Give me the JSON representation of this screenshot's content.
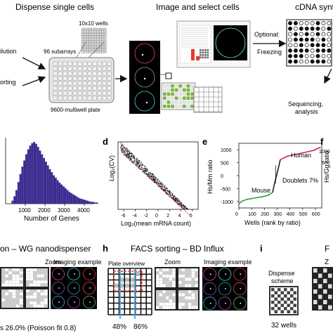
{
  "top": {
    "dispense_title": "Dispense single cells",
    "image_title": "Image and select cells",
    "cdna_title": "cDNA synth",
    "dilution": "ilution",
    "sorting": "orting",
    "wells_10x10": "10x10 wells",
    "subarrays": "96 subarrays",
    "plate": "9600-multiwell plate",
    "optional": "Optional:",
    "freezing": "Freezing",
    "sequencing": "Sequencing,",
    "analysis": "analysis"
  },
  "panels": {
    "d": "d",
    "e": "e",
    "f": "f",
    "h": "h",
    "i": "i"
  },
  "hist": {
    "xlabel": "Number of Genes",
    "ticks": [
      "1000",
      "2000",
      "3000",
      "4000"
    ],
    "chart_data": {
      "type": "bar",
      "xlabel": "Number of Genes",
      "ylabel": "",
      "xlim": [
        0,
        4500
      ],
      "bin_width": 100,
      "bin_start": 300,
      "values": [
        5,
        12,
        22,
        35,
        48,
        60,
        70,
        80,
        88,
        94,
        98,
        100,
        97,
        92,
        86,
        80,
        74,
        68,
        62,
        56,
        51,
        46,
        42,
        38,
        34,
        31,
        28,
        25,
        22,
        19,
        17,
        15,
        13,
        11,
        9,
        8,
        7,
        6,
        5,
        4,
        3,
        3,
        2,
        2
      ]
    }
  },
  "scatter_d": {
    "ylabel": "Log₂(CV)",
    "xlabel": "Log₂(mean mRNA count)",
    "xticks": [
      "-6",
      "-4",
      "-2",
      "0",
      "2",
      "4",
      "6"
    ],
    "yticks": [
      "2",
      "1",
      "0",
      "-1",
      "-2",
      "-3"
    ],
    "chart_data": {
      "type": "scatter",
      "xlabel": "Log₂(mean mRNA count)",
      "ylabel": "Log₂(CV)",
      "xlim": [
        -7,
        7
      ],
      "ylim": [
        -3.5,
        2.5
      ],
      "trend_color": "#d62728"
    }
  },
  "ratio_e": {
    "ylabel": "Hs/Mm ratio",
    "xlabel": "Wells (rank by ratio)",
    "yticks": [
      "1000",
      "500",
      "0",
      "-500",
      "-1000"
    ],
    "xticks": [
      "0",
      "100",
      "200",
      "300",
      "400",
      "500",
      "600"
    ],
    "mouse": "Mouse",
    "human": "Human",
    "doublets": "Doublets 7%",
    "chart_data": {
      "type": "line",
      "xlabel": "Wells (rank by ratio)",
      "ylabel": "Hs/Mm ratio",
      "xlim": [
        0,
        650
      ],
      "ylim": [
        -1250,
        1250
      ],
      "series": [
        {
          "name": "Mouse",
          "color": "#2ca02c",
          "x": [
            0,
            20,
            60,
            120,
            180,
            230,
            265
          ],
          "y": [
            -1100,
            -1000,
            -920,
            -870,
            -820,
            -760,
            -650
          ]
        },
        {
          "name": "",
          "color": "#222222",
          "x": [
            265,
            280,
            295,
            310,
            325
          ],
          "y": [
            -650,
            -300,
            0,
            300,
            620
          ]
        },
        {
          "name": "Human",
          "color": "#d81b60",
          "x": [
            325,
            380,
            450,
            520,
            590,
            640
          ],
          "y": [
            620,
            750,
            830,
            900,
            980,
            1100
          ]
        }
      ]
    }
  },
  "ratio_f": {
    "ylabel": "Hs/Gg ratio",
    "yticks": [
      "1000",
      "500"
    ]
  },
  "bottom": {
    "g_title": "on – WG nanodispenser",
    "zoom": "Zoom",
    "imaging": "Imaging example",
    "g_caption": "s 26.0% (Poisson fit 0.8)",
    "h_title": "FACS sorting – BD Influx",
    "plate_overview": "Plate overview",
    "h_zoom": "Zoom",
    "h_imaging": "Imaging example",
    "pct1": "48%",
    "pct2": "86%",
    "dispense_scheme_1": "Dispense",
    "dispense_scheme_2": "scheme",
    "wells_32": "32 wells",
    "i_zoom_cut": "Z",
    "i_cut": "F"
  },
  "colors": {
    "hist_bar": "#3b2d8f",
    "green": "#2ca02c",
    "magenta": "#d81b60",
    "red": "#d62728",
    "blue": "#4aa3df"
  }
}
